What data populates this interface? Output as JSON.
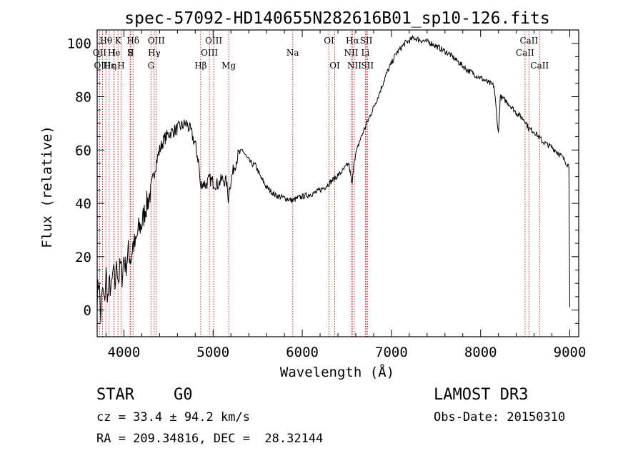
{
  "chart_data": {
    "type": "line",
    "title": "spec-57092-HD140655N282616B01_sp10-126.fits",
    "xlabel": "Wavelength (Å)",
    "ylabel": "Flux (relative)",
    "xlim": [
      3700,
      9100
    ],
    "ylim": [
      -10,
      105
    ],
    "x_ticks": [
      4000,
      5000,
      6000,
      7000,
      8000,
      9000
    ],
    "y_ticks": [
      0,
      20,
      40,
      60,
      80,
      100
    ],
    "series": [
      {
        "name": "spectrum",
        "color": "#000000",
        "points": [
          [
            3700,
            5
          ],
          [
            3720,
            12
          ],
          [
            3740,
            -3
          ],
          [
            3760,
            8
          ],
          [
            3780,
            2
          ],
          [
            3800,
            14
          ],
          [
            3820,
            4
          ],
          [
            3840,
            10
          ],
          [
            3860,
            7
          ],
          [
            3880,
            15
          ],
          [
            3900,
            9
          ],
          [
            3920,
            18
          ],
          [
            3940,
            11
          ],
          [
            3960,
            17
          ],
          [
            3980,
            13
          ],
          [
            4000,
            20
          ],
          [
            4020,
            16
          ],
          [
            4050,
            22
          ],
          [
            4080,
            19
          ],
          [
            4100,
            25
          ],
          [
            4130,
            24
          ],
          [
            4160,
            30
          ],
          [
            4200,
            32
          ],
          [
            4240,
            38
          ],
          [
            4280,
            42
          ],
          [
            4300,
            45
          ],
          [
            4330,
            50
          ],
          [
            4360,
            55
          ],
          [
            4400,
            60
          ],
          [
            4450,
            64
          ],
          [
            4500,
            66
          ],
          [
            4550,
            67
          ],
          [
            4600,
            68
          ],
          [
            4650,
            69
          ],
          [
            4700,
            70
          ],
          [
            4750,
            67
          ],
          [
            4800,
            62
          ],
          [
            4840,
            55
          ],
          [
            4860,
            45
          ],
          [
            4880,
            48
          ],
          [
            4920,
            47
          ],
          [
            4960,
            49
          ],
          [
            5000,
            48
          ],
          [
            5050,
            47
          ],
          [
            5100,
            49
          ],
          [
            5150,
            48
          ],
          [
            5170,
            42
          ],
          [
            5190,
            47
          ],
          [
            5230,
            53
          ],
          [
            5280,
            58
          ],
          [
            5330,
            60
          ],
          [
            5380,
            57
          ],
          [
            5430,
            55
          ],
          [
            5480,
            54
          ],
          [
            5530,
            50
          ],
          [
            5600,
            46
          ],
          [
            5700,
            43
          ],
          [
            5800,
            42
          ],
          [
            5890,
            41
          ],
          [
            5950,
            42
          ],
          [
            6050,
            43
          ],
          [
            6150,
            44
          ],
          [
            6250,
            46
          ],
          [
            6350,
            49
          ],
          [
            6450,
            52
          ],
          [
            6520,
            55
          ],
          [
            6560,
            47
          ],
          [
            6580,
            56
          ],
          [
            6650,
            64
          ],
          [
            6750,
            72
          ],
          [
            6850,
            80
          ],
          [
            6950,
            89
          ],
          [
            7050,
            96
          ],
          [
            7150,
            100
          ],
          [
            7250,
            102
          ],
          [
            7350,
            101
          ],
          [
            7450,
            100
          ],
          [
            7550,
            98
          ],
          [
            7650,
            96
          ],
          [
            7750,
            93
          ],
          [
            7850,
            90
          ],
          [
            7950,
            88
          ],
          [
            8050,
            86
          ],
          [
            8150,
            84
          ],
          [
            8200,
            66
          ],
          [
            8220,
            80
          ],
          [
            8300,
            78
          ],
          [
            8400,
            74
          ],
          [
            8500,
            71
          ],
          [
            8540,
            68
          ],
          [
            8600,
            67
          ],
          [
            8700,
            63
          ],
          [
            8800,
            61
          ],
          [
            8900,
            58
          ],
          [
            8990,
            54
          ],
          [
            9000,
            1
          ]
        ]
      }
    ],
    "annotations": [
      {
        "label": "Hθ",
        "x": 3798,
        "row": 1
      },
      {
        "label": "OII",
        "x": 3727,
        "row": 2
      },
      {
        "label": "OIII",
        "x": 3760,
        "row": 3
      },
      {
        "label": "Hε",
        "x": 3835,
        "row": 3
      },
      {
        "label": "He",
        "x": 3889,
        "row": 2
      },
      {
        "label": "K",
        "x": 3934,
        "row": 1
      },
      {
        "label": "I",
        "x": 3890,
        "row": 2
      },
      {
        "label": "η",
        "x": 3889,
        "row": 3
      },
      {
        "label": "S",
        "x": 4070,
        "row": 2
      },
      {
        "label": "II",
        "x": 4076,
        "row": 2
      },
      {
        "label": "H",
        "x": 3968,
        "row": 3
      },
      {
        "label": "Hδ",
        "x": 4102,
        "row": 1
      },
      {
        "label": "OIII",
        "x": 4363,
        "row": 1
      },
      {
        "label": "Hγ",
        "x": 4340,
        "row": 2
      },
      {
        "label": "G",
        "x": 4304,
        "row": 3
      },
      {
        "label": "Hβ",
        "x": 4861,
        "row": 3
      },
      {
        "label": "OIII",
        "x": 4959,
        "row": 2
      },
      {
        "label": "OIII",
        "x": 5007,
        "row": 1
      },
      {
        "label": "Mg",
        "x": 5175,
        "row": 3
      },
      {
        "label": "Na",
        "x": 5893,
        "row": 2
      },
      {
        "label": "OI",
        "x": 6300,
        "row": 1
      },
      {
        "label": "OI",
        "x": 6364,
        "row": 3
      },
      {
        "label": "Hα",
        "x": 6563,
        "row": 1
      },
      {
        "label": "NII",
        "x": 6548,
        "row": 2
      },
      {
        "label": "NII",
        "x": 6584,
        "row": 3
      },
      {
        "label": "SII",
        "x": 6717,
        "row": 1
      },
      {
        "label": "Li",
        "x": 6708,
        "row": 2
      },
      {
        "label": "SII",
        "x": 6731,
        "row": 3
      },
      {
        "label": "CaII",
        "x": 8542,
        "row": 1
      },
      {
        "label": "CaII",
        "x": 8498,
        "row": 2
      },
      {
        "label": "CaII",
        "x": 8662,
        "row": 3
      }
    ]
  },
  "info": {
    "object_class": "STAR",
    "subclass": "G0",
    "survey": "LAMOST DR3",
    "redshift_line": "cz = 33.4 ± 94.2 km/s",
    "obs_date": "Obs-Date: 20150310",
    "coords": "RA = 209.34816, DEC =  28.32144"
  },
  "colors": {
    "line_marker": "#cc2222",
    "spectrum": "#000000"
  }
}
